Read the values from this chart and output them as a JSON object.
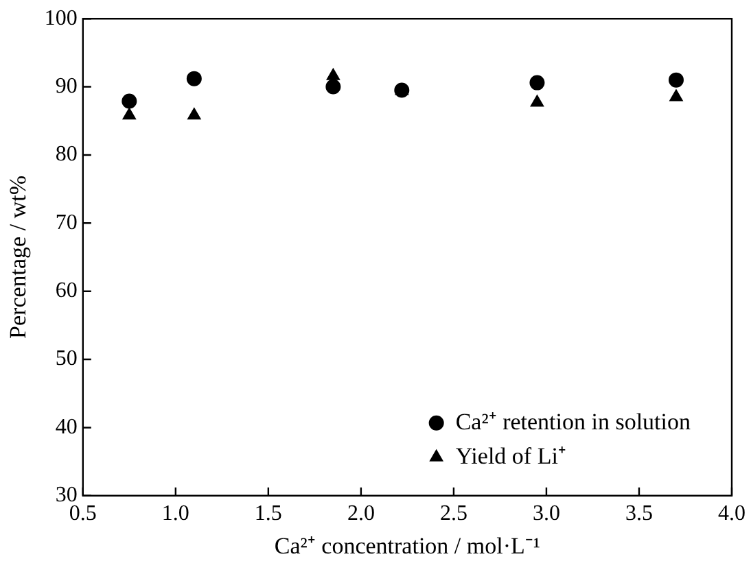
{
  "chart_data": {
    "type": "scatter",
    "xlabel": "Ca²⁺ concentration / mol·L⁻¹",
    "ylabel": "Percentage / wt%",
    "xlim": [
      0.5,
      4.0
    ],
    "xticks": [
      {
        "value": 0.5,
        "label": "0.5"
      },
      {
        "value": 1.0,
        "label": "1.0"
      },
      {
        "value": 1.5,
        "label": "1.5"
      },
      {
        "value": 2.0,
        "label": "2.0"
      },
      {
        "value": 2.5,
        "label": "2.5"
      },
      {
        "value": 3.0,
        "label": "3.0"
      },
      {
        "value": 3.5,
        "label": "3.5"
      },
      {
        "value": 4.0,
        "label": "4.0"
      }
    ],
    "ylim": [
      30,
      100
    ],
    "yticks": [
      30,
      40,
      50,
      60,
      70,
      80,
      90,
      100
    ],
    "grid": false,
    "legend": "bottom right",
    "x": [
      0.75,
      1.1,
      1.85,
      2.22,
      2.95,
      3.7
    ],
    "series": [
      {
        "name": "Ca²⁺ retention in solution",
        "color": "#000000",
        "marker": "circle",
        "values": [
          87.9,
          91.2,
          90.0,
          89.5,
          90.6,
          91.0
        ]
      },
      {
        "name": "Yield of Li⁺",
        "color": "#000000",
        "marker": "triangle",
        "values": [
          85.8,
          85.8,
          91.6,
          89.4,
          87.7,
          88.5
        ]
      }
    ]
  }
}
